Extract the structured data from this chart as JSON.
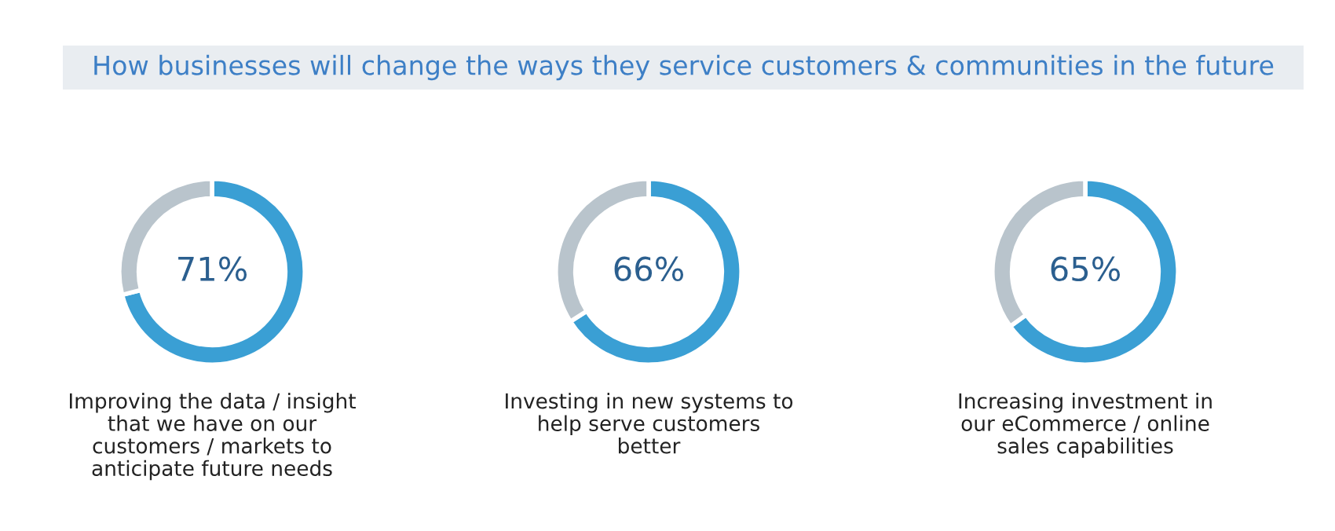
{
  "chart_data": [
    {
      "type": "donut",
      "title": "How businesses will change the ways they service customers & communities in the future",
      "categories": [
        null,
        null
      ],
      "values": [
        71,
        29
      ],
      "colors": [
        "#3a9fd4",
        "#b9c4cc"
      ],
      "value_labels": [
        "71%",
        null
      ],
      "xlabel": "Improving the data / insight\nthat we have on our\ncustomers / markets to\nanticipate future needs"
    },
    {
      "type": "donut",
      "categories": [
        null,
        null
      ],
      "values": [
        66,
        34
      ],
      "colors": [
        "#3a9fd4",
        "#b9c4cc"
      ],
      "value_labels": [
        "66%",
        null
      ],
      "xlabel": "Investing in new systems to\nhelp serve customers\nbetter"
    },
    {
      "type": "donut",
      "categories": [
        null,
        null
      ],
      "values": [
        65,
        35
      ],
      "colors": [
        "#3a9fd4",
        "#b9c4cc"
      ],
      "value_labels": [
        "65%",
        null
      ],
      "xlabel": "Increasing investment in\nour eCommerce / online\nsales capabilities"
    }
  ]
}
